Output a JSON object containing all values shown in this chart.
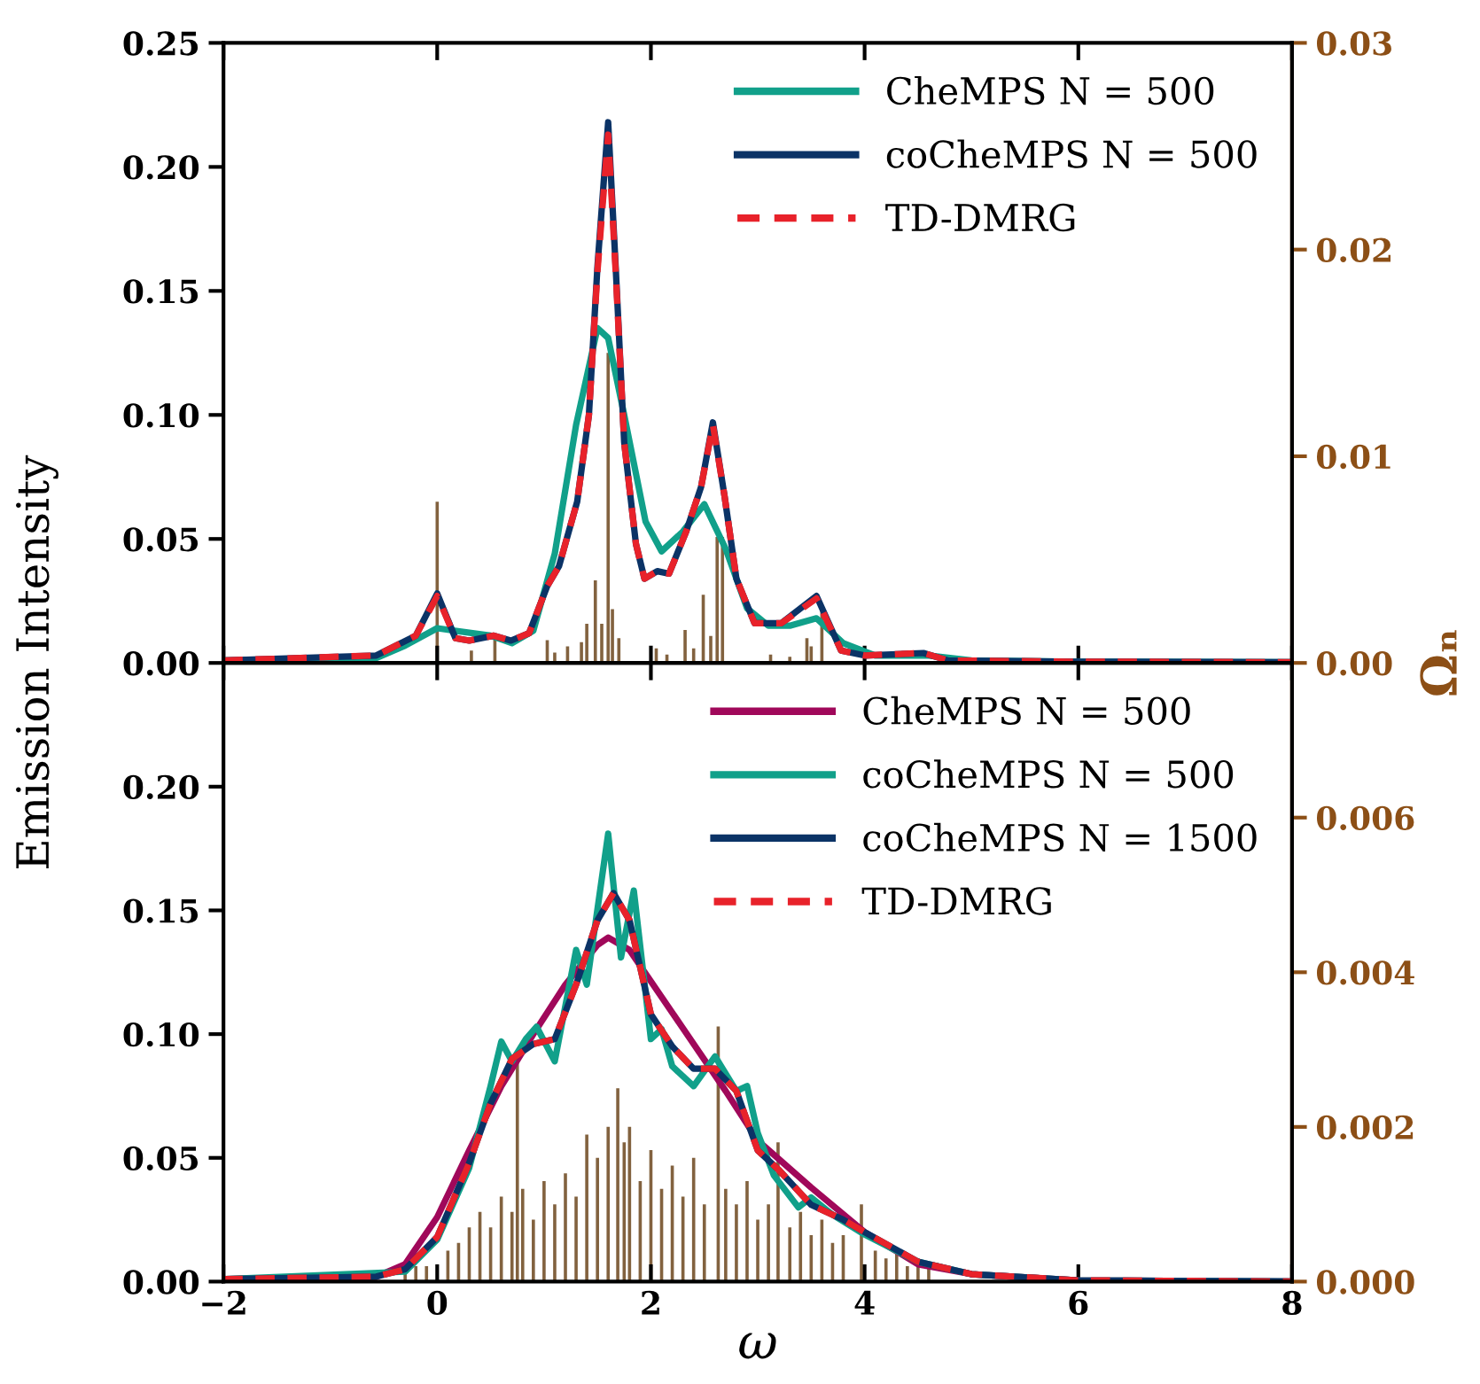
{
  "chart_data": [
    {
      "type": "line",
      "ylabel": "Emission Intensity",
      "y2label": "Ωₙ",
      "xlim": [
        -2,
        8
      ],
      "tick_labels": "y",
      "xticks": [
        -2,
        0,
        2,
        4,
        6,
        8
      ],
      "ylim": [
        0,
        0.25
      ],
      "yticks": [
        {
          "value": 0,
          "label": "0.00"
        },
        {
          "value": 0.05,
          "label": "0.05"
        },
        {
          "value": 0.1,
          "label": "0.10"
        },
        {
          "value": 0.15,
          "label": "0.15"
        },
        {
          "value": 0.2,
          "label": "0.20"
        },
        {
          "value": 0.25,
          "label": "0.25"
        }
      ],
      "y2lim": [
        0,
        0.03
      ],
      "y2ticks": [
        {
          "value": 0,
          "label": "0.00"
        },
        {
          "value": 0.01,
          "label": "0.01"
        },
        {
          "value": 0.02,
          "label": "0.02"
        },
        {
          "value": 0.03,
          "label": "0.03"
        }
      ],
      "legend": "top right",
      "grid": false,
      "series": [
        {
          "type": "bar",
          "axis": "y2",
          "color": "#82623f",
          "x": [
            0.0,
            0.32,
            0.54,
            1.03,
            1.1,
            1.22,
            1.35,
            1.4,
            1.48,
            1.54,
            1.6,
            1.64,
            1.7,
            2.05,
            2.15,
            2.32,
            2.4,
            2.49,
            2.56,
            2.62,
            2.67,
            3.12,
            3.3,
            3.46,
            3.5,
            3.6
          ],
          "values": [
            0.0078,
            0.0006,
            0.0012,
            0.0011,
            0.0005,
            0.0008,
            0.001,
            0.0019,
            0.004,
            0.0019,
            0.015,
            0.0026,
            0.0012,
            0.0007,
            0.0004,
            0.0016,
            0.0007,
            0.0033,
            0.0013,
            0.0061,
            0.0061,
            0.0004,
            0.0003,
            0.0012,
            0.0008,
            0.0026
          ]
        },
        {
          "name": "CheMPS N = 500",
          "color": "#11a08a",
          "line_style": "solid",
          "x": [
            -2,
            -0.57,
            -0.3,
            0,
            0.5,
            0.7,
            0.9,
            1.1,
            1.3,
            1.5,
            1.6,
            1.75,
            1.95,
            2.1,
            2.3,
            2.5,
            2.7,
            2.9,
            3.1,
            3.3,
            3.55,
            3.8,
            4.1,
            4.6,
            5,
            6,
            8
          ],
          "values": [
            0.001,
            0.002,
            0.007,
            0.014,
            0.011,
            0.008,
            0.013,
            0.044,
            0.096,
            0.135,
            0.131,
            0.1,
            0.057,
            0.045,
            0.053,
            0.064,
            0.046,
            0.022,
            0.015,
            0.015,
            0.018,
            0.008,
            0.003,
            0.003,
            0.001,
            0.0005,
            0.0003
          ]
        },
        {
          "name": "coCheMPS N = 500",
          "color": "#0b3366",
          "line_style": "solid",
          "x": [
            -2,
            -0.57,
            -0.2,
            0,
            0.17,
            0.3,
            0.53,
            0.69,
            0.86,
            1.03,
            1.14,
            1.31,
            1.42,
            1.5,
            1.6,
            1.67,
            1.75,
            1.86,
            1.94,
            2.06,
            2.17,
            2.33,
            2.47,
            2.58,
            2.69,
            2.8,
            2.97,
            3.22,
            3.55,
            3.78,
            4.0,
            4.55,
            4.78,
            6,
            8
          ],
          "values": [
            0.001,
            0.003,
            0.011,
            0.028,
            0.01,
            0.009,
            0.011,
            0.009,
            0.012,
            0.031,
            0.039,
            0.065,
            0.1,
            0.16,
            0.218,
            0.16,
            0.089,
            0.048,
            0.034,
            0.037,
            0.036,
            0.053,
            0.071,
            0.097,
            0.067,
            0.034,
            0.016,
            0.016,
            0.027,
            0.005,
            0.003,
            0.004,
            0.001,
            0.0005,
            0.0003
          ]
        },
        {
          "name": "TD-DMRG",
          "color": "#e8222a",
          "line_style": "dashed",
          "x": [
            -2,
            -0.57,
            -0.2,
            0,
            0.17,
            0.3,
            0.53,
            0.69,
            0.86,
            1.03,
            1.14,
            1.31,
            1.42,
            1.5,
            1.6,
            1.67,
            1.75,
            1.86,
            1.94,
            2.06,
            2.17,
            2.33,
            2.47,
            2.58,
            2.69,
            2.8,
            2.97,
            3.22,
            3.55,
            3.78,
            4.0,
            4.55,
            4.78,
            6,
            8
          ],
          "values": [
            0.001,
            0.003,
            0.011,
            0.027,
            0.01,
            0.009,
            0.011,
            0.009,
            0.012,
            0.031,
            0.039,
            0.065,
            0.1,
            0.158,
            0.213,
            0.158,
            0.089,
            0.048,
            0.034,
            0.037,
            0.036,
            0.053,
            0.071,
            0.096,
            0.067,
            0.034,
            0.016,
            0.016,
            0.026,
            0.005,
            0.003,
            0.004,
            0.001,
            0.0005,
            0.0003
          ]
        }
      ]
    },
    {
      "type": "line",
      "xlabel": "ω",
      "xlim": [
        -2,
        8
      ],
      "xticks": [
        {
          "value": -2,
          "label": "−2"
        },
        0,
        2,
        4,
        6,
        8
      ],
      "ylim": [
        0,
        0.25
      ],
      "yticks": [
        {
          "value": 0,
          "label": "0.00"
        },
        {
          "value": 0.05,
          "label": "0.05"
        },
        {
          "value": 0.1,
          "label": "0.10"
        },
        {
          "value": 0.15,
          "label": "0.15"
        },
        {
          "value": 0.2,
          "label": "0.20"
        }
      ],
      "y2lim": [
        0,
        0.008
      ],
      "y2ticks": [
        {
          "value": 0,
          "label": "0.000"
        },
        {
          "value": 0.002,
          "label": "0.002"
        },
        {
          "value": 0.004,
          "label": "0.004"
        },
        {
          "value": 0.006,
          "label": "0.006"
        }
      ],
      "legend": "top right",
      "grid": false,
      "series": [
        {
          "type": "bar",
          "axis": "y2",
          "color": "#82623f",
          "x": [
            -0.3,
            -0.2,
            -0.1,
            0.1,
            0.2,
            0.3,
            0.4,
            0.5,
            0.6,
            0.7,
            0.75,
            0.8,
            0.9,
            1.0,
            1.1,
            1.2,
            1.3,
            1.4,
            1.5,
            1.6,
            1.69,
            1.75,
            1.8,
            1.9,
            2.0,
            2.1,
            2.2,
            2.3,
            2.4,
            2.5,
            2.63,
            2.7,
            2.8,
            2.9,
            3.0,
            3.1,
            3.19,
            3.3,
            3.4,
            3.5,
            3.6,
            3.7,
            3.8,
            3.97,
            4.1,
            4.2,
            4.3,
            4.4,
            4.5,
            4.6
          ],
          "values": [
            0.0001,
            0.0002,
            0.0002,
            0.0004,
            0.0005,
            0.0007,
            0.0009,
            0.0007,
            0.0011,
            0.0009,
            0.0029,
            0.0012,
            0.0008,
            0.0013,
            0.001,
            0.0014,
            0.0011,
            0.0019,
            0.0016,
            0.002,
            0.0025,
            0.0018,
            0.002,
            0.0013,
            0.0017,
            0.0012,
            0.0015,
            0.0011,
            0.0016,
            0.001,
            0.0033,
            0.0012,
            0.001,
            0.0013,
            0.0008,
            0.001,
            0.0018,
            0.0007,
            0.0009,
            0.0006,
            0.0008,
            0.0005,
            0.0006,
            0.001,
            0.0004,
            0.0003,
            0.0004,
            0.0002,
            0.0003,
            0.0002
          ]
        },
        {
          "name": "CheMPS N = 500",
          "color": "#a0085a",
          "line_style": "solid",
          "x": [
            -2,
            -0.57,
            -0.3,
            0,
            0.3,
            0.6,
            0.9,
            1.2,
            1.5,
            1.6,
            1.8,
            2.1,
            2.4,
            2.7,
            3.0,
            3.5,
            4.0,
            4.5,
            5,
            6,
            8
          ],
          "values": [
            0.001,
            0.002,
            0.007,
            0.026,
            0.053,
            0.079,
            0.1,
            0.12,
            0.136,
            0.139,
            0.134,
            0.115,
            0.096,
            0.077,
            0.057,
            0.038,
            0.02,
            0.007,
            0.003,
            0.0005,
            0
          ]
        },
        {
          "name": "coCheMPS N = 500",
          "color": "#11a08a",
          "line_style": "solid",
          "x": [
            -2,
            -0.3,
            0,
            0.3,
            0.5,
            0.6,
            0.7,
            0.83,
            0.93,
            1.1,
            1.3,
            1.4,
            1.6,
            1.72,
            1.84,
            2.0,
            2.1,
            2.2,
            2.4,
            2.6,
            2.8,
            2.9,
            3.0,
            3.15,
            3.38,
            3.5,
            3.7,
            4.0,
            4.5,
            5,
            6,
            8
          ],
          "values": [
            0.001,
            0.004,
            0.017,
            0.046,
            0.079,
            0.097,
            0.089,
            0.098,
            0.103,
            0.089,
            0.134,
            0.12,
            0.181,
            0.131,
            0.158,
            0.098,
            0.102,
            0.087,
            0.079,
            0.091,
            0.077,
            0.079,
            0.06,
            0.043,
            0.03,
            0.034,
            0.027,
            0.019,
            0.008,
            0.003,
            0.0005,
            0
          ]
        },
        {
          "name": "coCheMPS N = 1500",
          "color": "#0b3366",
          "line_style": "solid",
          "x": [
            -2,
            -0.57,
            -0.3,
            0,
            0.3,
            0.5,
            0.7,
            0.9,
            1.1,
            1.3,
            1.5,
            1.65,
            1.8,
            2.0,
            2.2,
            2.4,
            2.6,
            2.8,
            3.0,
            3.2,
            3.5,
            3.8,
            4.0,
            4.5,
            5,
            6,
            8
          ],
          "values": [
            0.001,
            0.002,
            0.005,
            0.018,
            0.048,
            0.072,
            0.09,
            0.096,
            0.098,
            0.12,
            0.146,
            0.157,
            0.146,
            0.108,
            0.095,
            0.086,
            0.086,
            0.077,
            0.053,
            0.045,
            0.031,
            0.025,
            0.02,
            0.008,
            0.003,
            0.0005,
            0
          ]
        },
        {
          "name": "TD-DMRG",
          "color": "#e8222a",
          "line_style": "dashed",
          "x": [
            -2,
            -0.57,
            -0.3,
            0,
            0.3,
            0.5,
            0.7,
            0.9,
            1.1,
            1.3,
            1.5,
            1.65,
            1.8,
            2.0,
            2.2,
            2.4,
            2.6,
            2.8,
            3.0,
            3.2,
            3.5,
            3.8,
            4.0,
            4.5,
            5,
            6,
            8
          ],
          "values": [
            0.001,
            0.002,
            0.005,
            0.018,
            0.048,
            0.072,
            0.09,
            0.096,
            0.098,
            0.12,
            0.146,
            0.157,
            0.146,
            0.108,
            0.095,
            0.086,
            0.086,
            0.077,
            0.053,
            0.045,
            0.031,
            0.025,
            0.02,
            0.008,
            0.003,
            0.0005,
            0
          ]
        }
      ]
    }
  ]
}
